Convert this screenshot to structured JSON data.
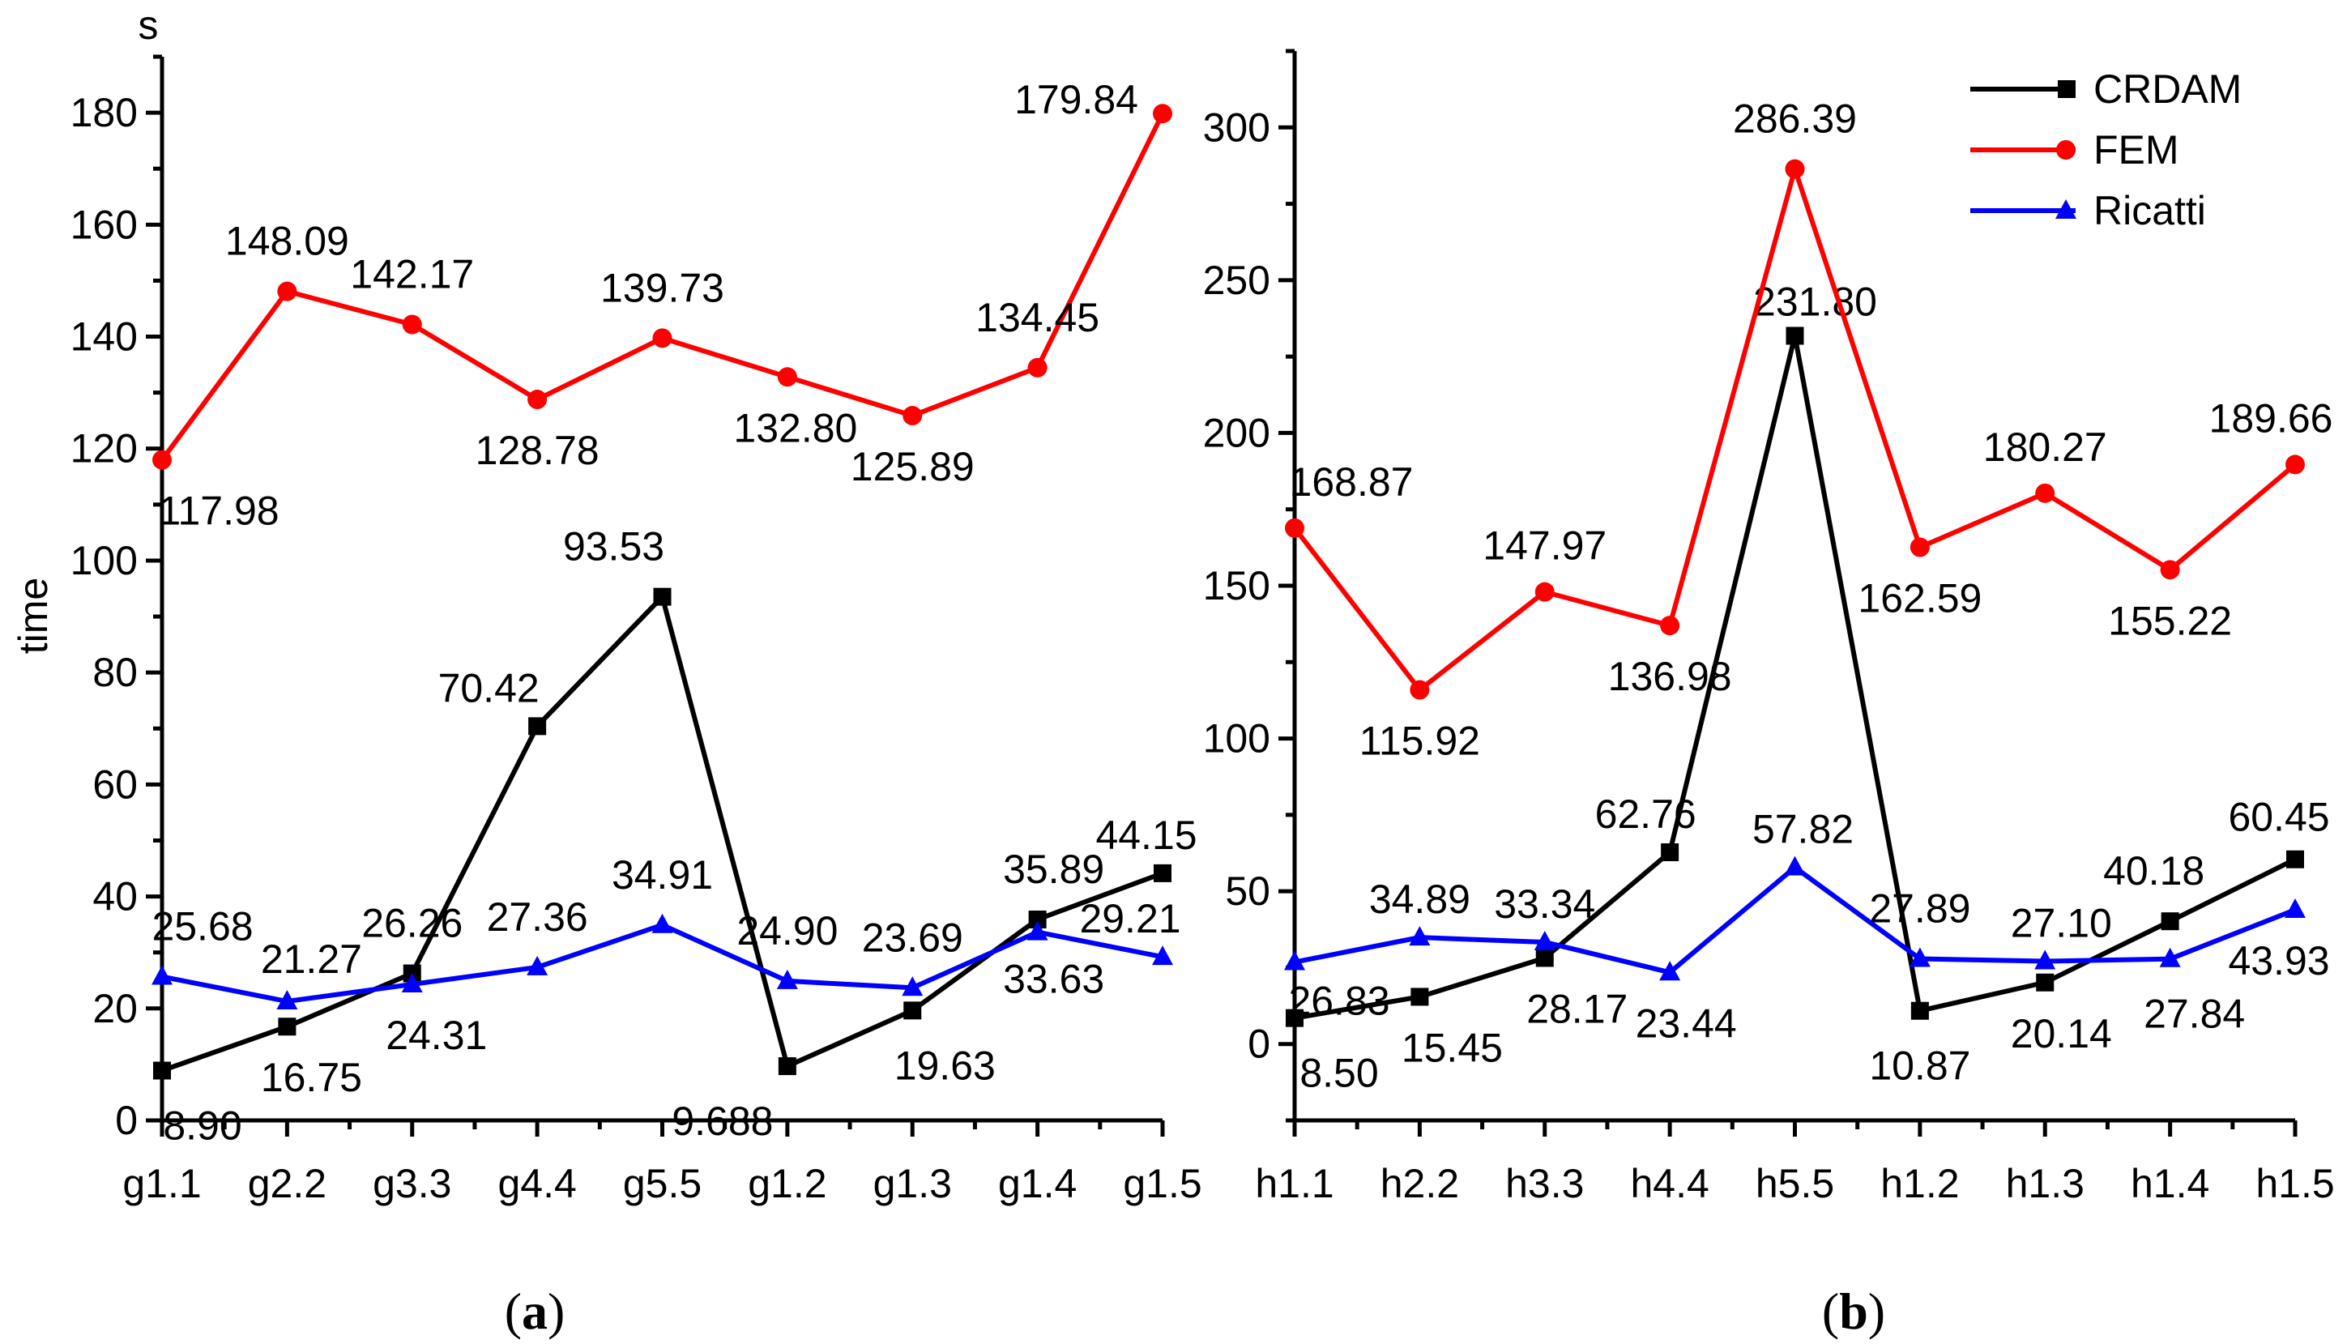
{
  "chart_data": [
    {
      "type": "line",
      "panel": "(a)",
      "panel_letter": "a",
      "ylabel": "time",
      "yunit": "s",
      "ylim": [
        0,
        190
      ],
      "yticks": [
        0,
        20,
        40,
        60,
        80,
        100,
        120,
        140,
        160,
        180
      ],
      "categories": [
        "g1.1",
        "g2.2",
        "g3.3",
        "g4.4",
        "g5.5",
        "g1.2",
        "g1.3",
        "g1.4",
        "g1.5"
      ],
      "series": [
        {
          "name": "CRDAM",
          "color": "#000000",
          "marker": "square",
          "values": [
            8.9,
            16.75,
            26.26,
            70.42,
            93.53,
            9.688,
            19.63,
            35.89,
            44.15
          ],
          "labels": [
            "8.90",
            "16.75",
            "26.26",
            "70.42",
            "93.53",
            "9.688",
            "19.63",
            "35.89",
            "44.15"
          ]
        },
        {
          "name": "FEM",
          "color": "#ff0000",
          "marker": "circle",
          "values": [
            117.98,
            148.09,
            142.17,
            128.78,
            139.73,
            132.8,
            125.89,
            134.45,
            179.84
          ],
          "labels": [
            "117.98",
            "148.09",
            "142.17",
            "128.78",
            "139.73",
            "132.80",
            "125.89",
            "134.45",
            "179.84"
          ]
        },
        {
          "name": "Ricatti",
          "color": "#0000ff",
          "marker": "triangle",
          "values": [
            25.68,
            21.27,
            24.31,
            27.36,
            34.91,
            24.9,
            23.69,
            33.63,
            29.21
          ],
          "labels": [
            "25.68",
            "21.27",
            "24.31",
            "27.36",
            "34.91",
            "24.90",
            "23.69",
            "33.63",
            "29.21"
          ]
        }
      ]
    },
    {
      "type": "line",
      "panel": "(b)",
      "panel_letter": "b",
      "ylabel": "",
      "yunit": "",
      "ylim": [
        -25,
        325
      ],
      "yticks": [
        0,
        50,
        100,
        150,
        200,
        250,
        300
      ],
      "categories": [
        "h1.1",
        "h2.2",
        "h3.3",
        "h4.4",
        "h5.5",
        "h1.2",
        "h1.3",
        "h1.4",
        "h1.5"
      ],
      "legend": "top-right",
      "series": [
        {
          "name": "CRDAM",
          "color": "#000000",
          "marker": "square",
          "values": [
            8.5,
            15.45,
            28.17,
            62.76,
            231.8,
            10.87,
            20.14,
            40.18,
            60.45
          ],
          "labels": [
            "8.50",
            "15.45",
            "28.17",
            "62.76",
            "231.80",
            "10.87",
            "20.14",
            "40.18",
            "60.45"
          ]
        },
        {
          "name": "FEM",
          "color": "#ff0000",
          "marker": "circle",
          "values": [
            168.87,
            115.92,
            147.97,
            136.98,
            286.39,
            162.59,
            180.27,
            155.22,
            189.66
          ],
          "labels": [
            "168.87",
            "115.92",
            "147.97",
            "136.98",
            "286.39",
            "162.59",
            "180.27",
            "155.22",
            "189.66"
          ]
        },
        {
          "name": "Ricatti",
          "color": "#0000ff",
          "marker": "triangle",
          "values": [
            26.83,
            34.89,
            33.34,
            23.44,
            57.82,
            27.89,
            27.1,
            27.84,
            43.93
          ],
          "labels": [
            "26.83",
            "34.89",
            "33.34",
            "23.44",
            "57.82",
            "27.89",
            "27.10",
            "27.84",
            "43.93"
          ]
        }
      ]
    }
  ]
}
